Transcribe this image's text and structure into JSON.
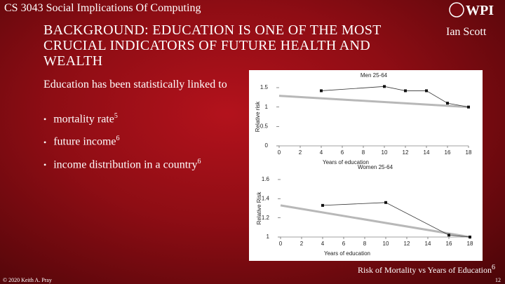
{
  "header": {
    "course": "CS 3043 Social Implications Of Computing",
    "logo": "WPI",
    "title": "BACKGROUND: EDUCATION IS ONE OF THE MOST CRUCIAL INDICATORS OF FUTURE HEALTH AND WEALTH",
    "author": "Ian Scott"
  },
  "body": {
    "intro": "Education has been statistically linked to",
    "bullets": [
      {
        "text": "mortality rate",
        "ref": "5"
      },
      {
        "text": "future income",
        "ref": "6"
      },
      {
        "text": "income distribution in a country",
        "ref": "6"
      }
    ]
  },
  "figure": {
    "panels": [
      {
        "title": "Men 25-64",
        "xlabel": "Years of education",
        "ylabel": "Relative risk",
        "xlim": [
          0,
          18
        ],
        "ylim": [
          0,
          1.5
        ],
        "xticks": [
          0,
          2,
          4,
          6,
          8,
          10,
          12,
          14,
          16,
          18
        ],
        "yticks": [
          0,
          0.5,
          1,
          1.5
        ],
        "fit": {
          "x": [
            0,
            18
          ],
          "values": [
            1.29,
            1.0
          ]
        },
        "points": {
          "x": [
            4,
            10,
            12,
            14,
            16,
            18
          ],
          "values": [
            1.42,
            1.53,
            1.42,
            1.42,
            1.1,
            1.0
          ]
        }
      },
      {
        "title": "Women 25-64",
        "xlabel": "Years of education",
        "ylabel": "Relative Risk",
        "xlim": [
          0,
          18
        ],
        "ylim": [
          1,
          1.6
        ],
        "xticks": [
          0,
          2,
          4,
          6,
          8,
          10,
          12,
          14,
          16,
          18
        ],
        "yticks": [
          1,
          1.2,
          1.4,
          1.6
        ],
        "fit": {
          "x": [
            0,
            18
          ],
          "values": [
            1.33,
            1.0
          ]
        },
        "points": {
          "x": [
            4,
            10,
            16,
            18
          ],
          "values": [
            1.33,
            1.36,
            1.02,
            1.0
          ]
        }
      }
    ],
    "caption": {
      "text": "Risk of Mortality vs Years of Education",
      "ref": "6"
    }
  },
  "footer": {
    "copyright": "© 2020 Keith A. Pray",
    "page": "12"
  }
}
